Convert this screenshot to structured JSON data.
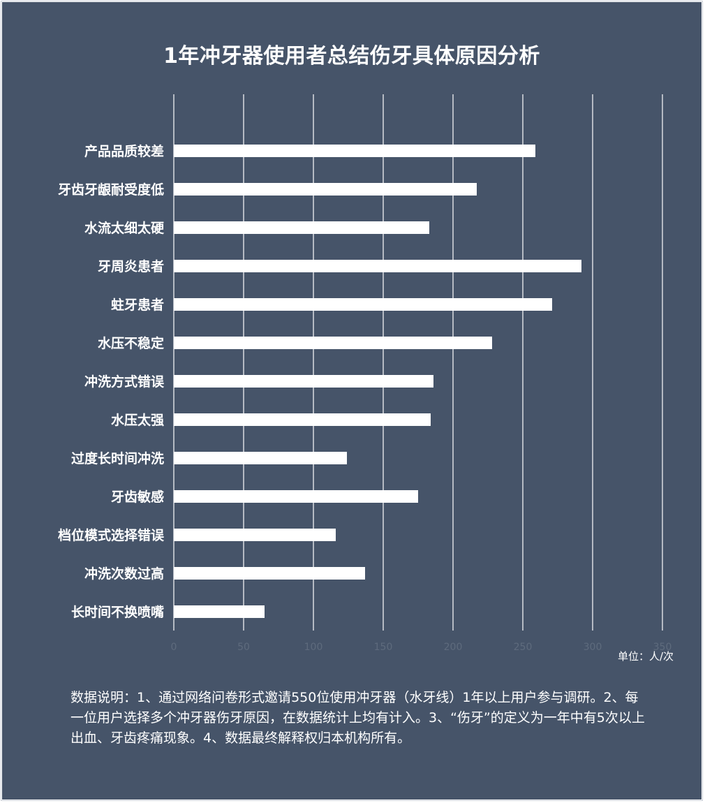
{
  "chart_data": {
    "type": "bar",
    "orientation": "horizontal",
    "title": "1年冲牙器使用者总结伤牙具体原因分析",
    "categories": [
      "产品品质较差",
      "牙齿牙龈耐受度低",
      "水流太细太硬",
      "牙周炎患者",
      "蛀牙患者",
      "水压不稳定",
      "冲洗方式错误",
      "水压太强",
      "过度长时间冲洗",
      "牙齿敏感",
      "档位模式选择错误",
      "冲洗次数过高",
      "长时间不换喷嘴"
    ],
    "values": [
      259,
      217,
      183,
      292,
      271,
      228,
      186,
      184,
      124,
      175,
      116,
      137,
      65
    ],
    "xlim": [
      0,
      350
    ],
    "xticks": [
      0,
      50,
      100,
      150,
      200,
      250,
      300,
      350
    ],
    "grid": "vertical",
    "unit": "单位：人/次",
    "colors": {
      "background": "#465469",
      "bar": "#ffffff",
      "grid": "#ffffff",
      "tick_label": "#5e6b7d"
    }
  },
  "note": "数据说明：1、通过网络问卷形式邀请550位使用冲牙器（水牙线）1年以上用户参与调研。2、每一位用户选择多个冲牙器伤牙原因，在数据统计上均有计入。3、“伤牙”的定义为一年中有5次以上出血、牙齿疼痛现象。4、数据最终解释权归本机构所有。"
}
